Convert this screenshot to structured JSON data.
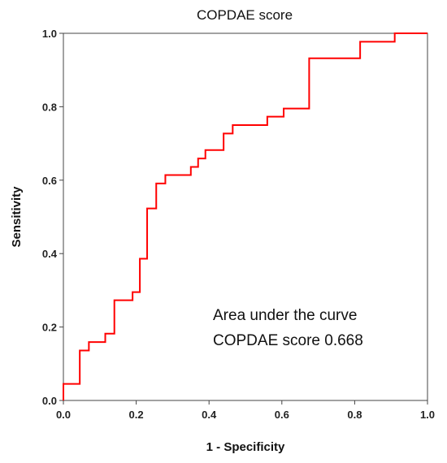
{
  "chart_data": {
    "type": "line",
    "title": "COPDAE score",
    "xlabel": "1 - Specificity",
    "ylabel": "Sensitivity",
    "xlim": [
      0,
      1
    ],
    "ylim": [
      0,
      1
    ],
    "x_ticks": [
      "0.0",
      "0.2",
      "0.4",
      "0.6",
      "0.8",
      "1.0"
    ],
    "y_ticks": [
      "0.0",
      "0.2",
      "0.4",
      "0.6",
      "0.8",
      "1.0"
    ],
    "annotation": [
      "Area under the curve",
      "COPDAE score  0.668"
    ],
    "grid": false,
    "series": [
      {
        "color": "#ff0000",
        "x": [
          0,
          0,
          0.045,
          0.045,
          0.07,
          0.07,
          0.115,
          0.115,
          0.14,
          0.14,
          0.19,
          0.19,
          0.21,
          0.21,
          0.23,
          0.23,
          0.255,
          0.255,
          0.28,
          0.28,
          0.35,
          0.35,
          0.37,
          0.37,
          0.39,
          0.39,
          0.44,
          0.44,
          0.465,
          0.465,
          0.56,
          0.56,
          0.605,
          0.605,
          0.675,
          0.675,
          0.815,
          0.815,
          0.91,
          0.91,
          1.0
        ],
        "y": [
          0,
          0.045,
          0.045,
          0.136,
          0.136,
          0.159,
          0.159,
          0.182,
          0.182,
          0.273,
          0.273,
          0.295,
          0.295,
          0.386,
          0.386,
          0.523,
          0.523,
          0.591,
          0.591,
          0.614,
          0.614,
          0.636,
          0.636,
          0.659,
          0.659,
          0.682,
          0.682,
          0.727,
          0.727,
          0.75,
          0.75,
          0.773,
          0.773,
          0.795,
          0.795,
          0.932,
          0.932,
          0.977,
          0.977,
          1.0,
          1.0
        ]
      }
    ]
  }
}
